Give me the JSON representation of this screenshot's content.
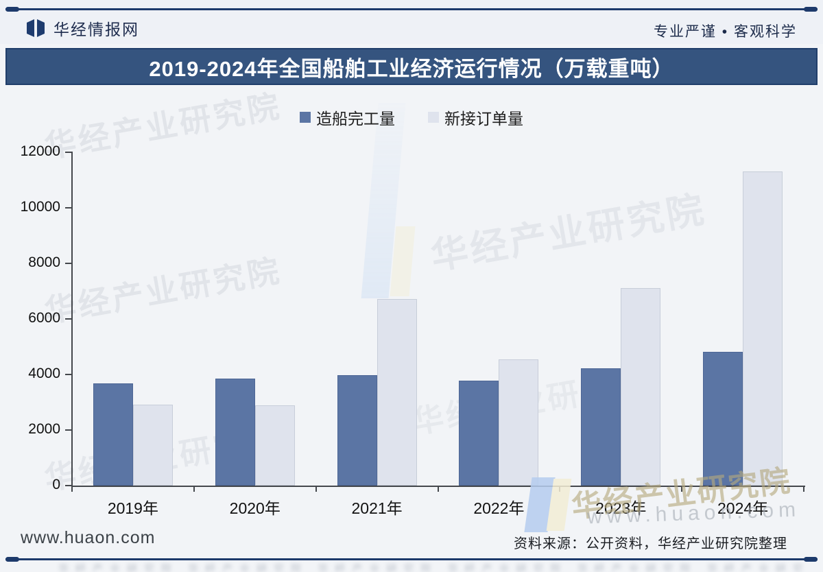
{
  "header": {
    "brand": "华经情报网",
    "logo_icon": "open-book-logo",
    "tagline": "专业严谨 • 客观科学"
  },
  "title_bar": {
    "title": "2019-2024年全国船舶工业经济运行情况（万载重吨）",
    "bg_color": "#35547F",
    "border_color": "#203E6A",
    "text_color": "#FFFFFF"
  },
  "legend": {
    "items": [
      {
        "label": "造船完工量",
        "color": "#5B75A4"
      },
      {
        "label": "新接订单量",
        "color": "#DFE3ED"
      }
    ]
  },
  "chart_data": {
    "type": "bar",
    "title": "2019-2024年全国船舶工业经济运行情况（万载重吨）",
    "unit": "万载重吨",
    "categories": [
      "2019年",
      "2020年",
      "2021年",
      "2022年",
      "2023年",
      "2024年"
    ],
    "series": [
      {
        "name": "造船完工量",
        "color": "#5B75A4",
        "border": "#4D6695",
        "values": [
          3672,
          3853,
          3970,
          3786,
          4232,
          4818
        ]
      },
      {
        "name": "新接订单量",
        "color": "#DFE3ED",
        "border": "#C7CDD9",
        "values": [
          2907,
          2893,
          6707,
          4552,
          7120,
          11305
        ]
      }
    ],
    "ylim": [
      0,
      12000
    ],
    "ytick_step": 2000,
    "yticks": [
      0,
      2000,
      4000,
      6000,
      8000,
      10000,
      12000
    ],
    "grid": false,
    "legend_position": "top"
  },
  "watermarks": {
    "diagonal_text": "华经产业研究院",
    "url_text": "www.huaon.com"
  },
  "footer": {
    "website": "www.huaon.com",
    "source": "资料来源：公开资料，华经产业研究院整理"
  },
  "colors": {
    "accent_navy": "#1D3A6B",
    "bar_dark": "#5B75A4",
    "bar_light": "#DFE3ED",
    "background": "#F2F4F7"
  }
}
